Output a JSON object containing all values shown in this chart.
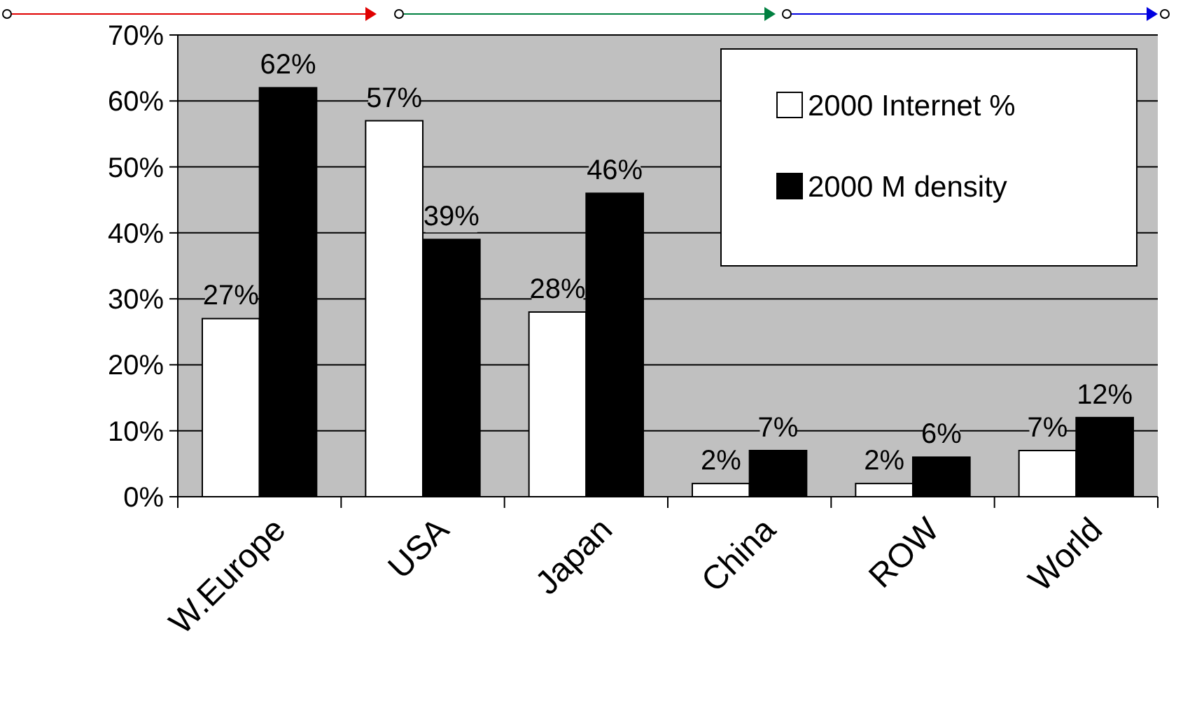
{
  "chart_data": {
    "type": "bar",
    "categories": [
      "W.Europe",
      "USA",
      "Japan",
      "China",
      "ROW",
      "World"
    ],
    "series": [
      {
        "name": "2000 Internet %",
        "color": "#ffffff",
        "values": [
          27,
          57,
          28,
          2,
          2,
          7
        ],
        "value_labels": [
          "27%",
          "57%",
          "28%",
          "2%",
          "2%",
          "7%"
        ]
      },
      {
        "name": "2000 M density",
        "color": "#000000",
        "values": [
          62,
          39,
          46,
          7,
          6,
          12
        ],
        "value_labels": [
          "62%",
          "39%",
          "46%",
          "7%",
          "6%",
          "12%"
        ]
      }
    ],
    "ylim": [
      0,
      70
    ],
    "yticks": [
      {
        "value": 0,
        "label": "0%"
      },
      {
        "value": 10,
        "label": "10%"
      },
      {
        "value": 20,
        "label": "20%"
      },
      {
        "value": 30,
        "label": "30%"
      },
      {
        "value": 40,
        "label": "40%"
      },
      {
        "value": 50,
        "label": "50%"
      },
      {
        "value": 60,
        "label": "60%"
      },
      {
        "value": 70,
        "label": "70%"
      }
    ],
    "grid": "y",
    "legend": "top right"
  }
}
